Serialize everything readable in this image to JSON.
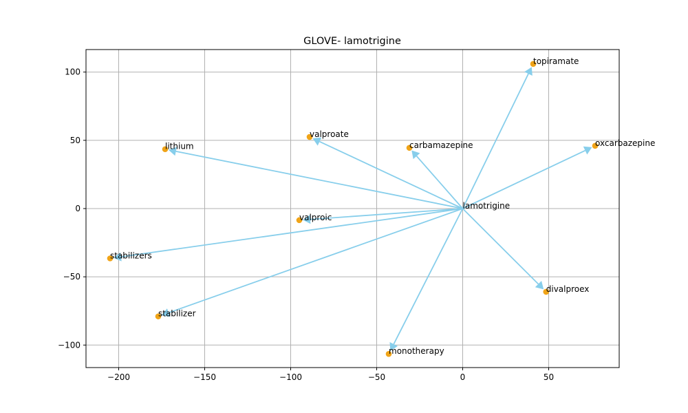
{
  "chart_data": {
    "type": "scatter",
    "title": "GLOVE- lamotrigine",
    "xlabel": "",
    "ylabel": "",
    "xlim": [
      -219,
      91
    ],
    "ylim": [
      -116.5,
      116.5
    ],
    "xticks": [
      -200,
      -150,
      -100,
      -50,
      0,
      50
    ],
    "yticks": [
      -100,
      -50,
      0,
      50,
      100
    ],
    "grid": true,
    "colors": {
      "point": "#f0a418",
      "arrow": "#87ceeb",
      "grid": "#b0b0b0"
    },
    "origin": {
      "label": "lamotrigine",
      "x": 0,
      "y": 0
    },
    "points": [
      {
        "label": "topiramate",
        "x": 41,
        "y": 106
      },
      {
        "label": "valproate",
        "x": -89,
        "y": 52.5
      },
      {
        "label": "carbamazepine",
        "x": -31,
        "y": 44.5
      },
      {
        "label": "oxcarbazepine",
        "x": 77,
        "y": 46
      },
      {
        "label": "lithium",
        "x": -173,
        "y": 43.5
      },
      {
        "label": "valproic",
        "x": -95,
        "y": -8.5
      },
      {
        "label": "stabilizers",
        "x": -205,
        "y": -36.5
      },
      {
        "label": "divalproex",
        "x": 48.5,
        "y": -61
      },
      {
        "label": "stabilizer",
        "x": -177,
        "y": -79
      },
      {
        "label": "monotherapy",
        "x": -43,
        "y": -106.5
      }
    ]
  }
}
